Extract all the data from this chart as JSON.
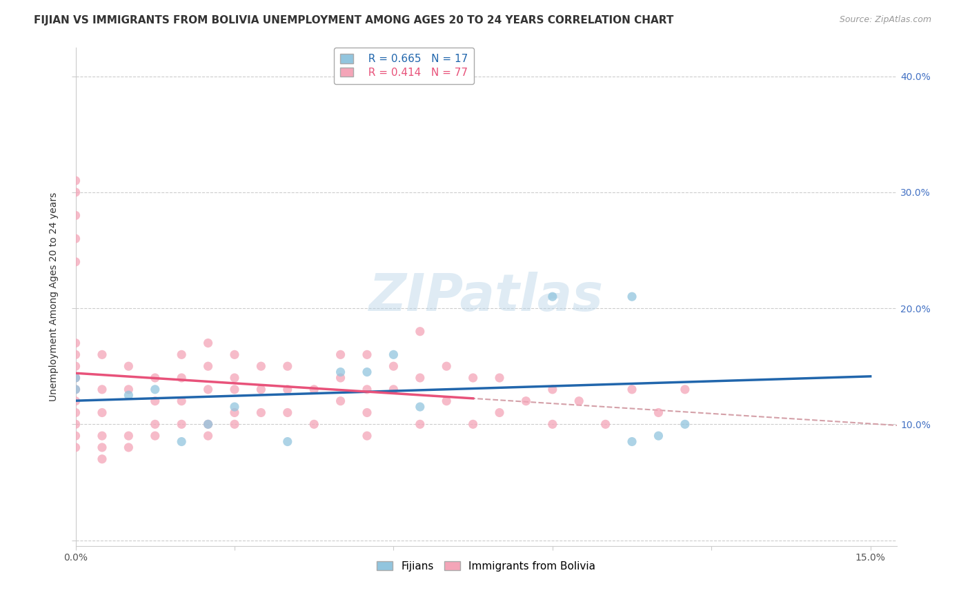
{
  "title": "FIJIAN VS IMMIGRANTS FROM BOLIVIA UNEMPLOYMENT AMONG AGES 20 TO 24 YEARS CORRELATION CHART",
  "source": "Source: ZipAtlas.com",
  "ylabel": "Unemployment Among Ages 20 to 24 years",
  "xlim": [
    0.0,
    0.155
  ],
  "ylim": [
    -0.005,
    0.425
  ],
  "fijian_color": "#92c5de",
  "bolivia_color": "#f4a5b8",
  "fijian_line_color": "#2166ac",
  "bolivia_line_color": "#e8527a",
  "dashed_line_color": "#d4a0a8",
  "watermark": "ZIPatlas",
  "legend_R_fijian": "R = 0.665",
  "legend_N_fijian": "N = 17",
  "legend_R_bolivia": "R = 0.414",
  "legend_N_bolivia": "N = 77",
  "fijian_x": [
    0.0,
    0.0,
    0.01,
    0.015,
    0.02,
    0.025,
    0.03,
    0.04,
    0.05,
    0.055,
    0.06,
    0.065,
    0.09,
    0.105,
    0.105,
    0.11,
    0.115
  ],
  "fijian_y": [
    0.13,
    0.14,
    0.125,
    0.13,
    0.085,
    0.1,
    0.115,
    0.085,
    0.145,
    0.145,
    0.16,
    0.115,
    0.21,
    0.21,
    0.085,
    0.09,
    0.1
  ],
  "bolivia_x": [
    0.0,
    0.0,
    0.0,
    0.0,
    0.0,
    0.0,
    0.0,
    0.0,
    0.0,
    0.0,
    0.0,
    0.0,
    0.0,
    0.0,
    0.0,
    0.005,
    0.005,
    0.005,
    0.005,
    0.005,
    0.005,
    0.01,
    0.01,
    0.01,
    0.01,
    0.015,
    0.015,
    0.015,
    0.015,
    0.02,
    0.02,
    0.02,
    0.02,
    0.025,
    0.025,
    0.025,
    0.025,
    0.025,
    0.03,
    0.03,
    0.03,
    0.03,
    0.03,
    0.035,
    0.035,
    0.035,
    0.04,
    0.04,
    0.04,
    0.045,
    0.045,
    0.05,
    0.05,
    0.05,
    0.055,
    0.055,
    0.055,
    0.055,
    0.06,
    0.06,
    0.065,
    0.065,
    0.065,
    0.07,
    0.07,
    0.075,
    0.075,
    0.08,
    0.08,
    0.085,
    0.09,
    0.09,
    0.095,
    0.1,
    0.105,
    0.11,
    0.115
  ],
  "bolivia_y": [
    0.08,
    0.09,
    0.1,
    0.11,
    0.12,
    0.13,
    0.14,
    0.15,
    0.16,
    0.17,
    0.24,
    0.26,
    0.28,
    0.3,
    0.31,
    0.07,
    0.08,
    0.09,
    0.11,
    0.13,
    0.16,
    0.08,
    0.09,
    0.13,
    0.15,
    0.09,
    0.1,
    0.12,
    0.14,
    0.1,
    0.12,
    0.14,
    0.16,
    0.09,
    0.1,
    0.13,
    0.15,
    0.17,
    0.1,
    0.11,
    0.13,
    0.14,
    0.16,
    0.11,
    0.13,
    0.15,
    0.11,
    0.13,
    0.15,
    0.1,
    0.13,
    0.12,
    0.14,
    0.16,
    0.09,
    0.11,
    0.13,
    0.16,
    0.13,
    0.15,
    0.1,
    0.14,
    0.18,
    0.12,
    0.15,
    0.1,
    0.14,
    0.11,
    0.14,
    0.12,
    0.1,
    0.13,
    0.12,
    0.1,
    0.13,
    0.11,
    0.13
  ],
  "title_fontsize": 11,
  "axis_fontsize": 10,
  "tick_fontsize": 10,
  "legend_fontsize": 11
}
